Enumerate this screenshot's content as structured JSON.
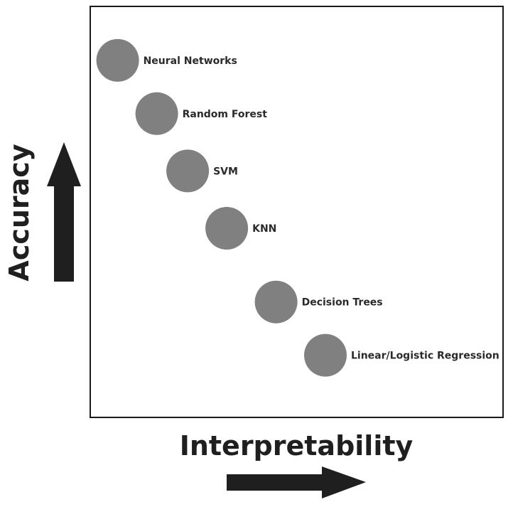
{
  "chart_data": {
    "type": "scatter",
    "title": "",
    "xlabel": "Interpretability",
    "ylabel": "Accuracy",
    "xlim": [
      0,
      10
    ],
    "ylim": [
      0,
      10
    ],
    "grid": false,
    "marker_color": "#808080",
    "points": [
      {
        "label": "Neural Networks",
        "x": 0.65,
        "y": 8.7
      },
      {
        "label": "Random Forest",
        "x": 1.6,
        "y": 7.4
      },
      {
        "label": "SVM",
        "x": 2.35,
        "y": 6.0
      },
      {
        "label": "KNN",
        "x": 3.3,
        "y": 4.6
      },
      {
        "label": "Decision Trees",
        "x": 4.5,
        "y": 2.8
      },
      {
        "label": "Linear/Logistic Regression",
        "x": 5.7,
        "y": 1.5
      }
    ]
  }
}
